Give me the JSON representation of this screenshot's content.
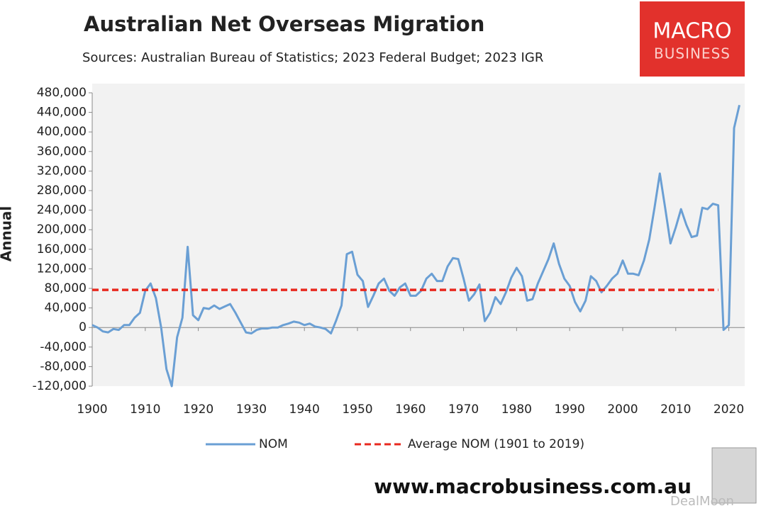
{
  "chart_data": {
    "type": "line",
    "title": "Australian Net Overseas Migration",
    "subtitle": "Sources: Australian Bureau of Statistics; 2023 Federal Budget; 2023 IGR",
    "y_label": "Annual",
    "logo": [
      "MACRO",
      "BUSINESS"
    ],
    "website": "www.macrobusiness.com.au",
    "watermark": "DealMoon",
    "x": [
      1900,
      1901,
      1902,
      1903,
      1904,
      1905,
      1906,
      1907,
      1908,
      1909,
      1910,
      1911,
      1912,
      1913,
      1914,
      1915,
      1916,
      1917,
      1918,
      1919,
      1920,
      1921,
      1922,
      1923,
      1924,
      1925,
      1926,
      1927,
      1928,
      1929,
      1930,
      1931,
      1932,
      1933,
      1934,
      1935,
      1936,
      1937,
      1938,
      1939,
      1940,
      1941,
      1942,
      1943,
      1944,
      1945,
      1946,
      1947,
      1948,
      1949,
      1950,
      1951,
      1952,
      1953,
      1954,
      1955,
      1956,
      1957,
      1958,
      1959,
      1960,
      1961,
      1962,
      1963,
      1964,
      1965,
      1966,
      1967,
      1968,
      1969,
      1970,
      1971,
      1972,
      1973,
      1974,
      1975,
      1976,
      1977,
      1978,
      1979,
      1980,
      1981,
      1982,
      1983,
      1984,
      1985,
      1986,
      1987,
      1988,
      1989,
      1990,
      1991,
      1992,
      1993,
      1994,
      1995,
      1996,
      1997,
      1998,
      1999,
      2000,
      2001,
      2002,
      2003,
      2004,
      2005,
      2006,
      2007,
      2008,
      2009,
      2010,
      2011,
      2012,
      2013,
      2014,
      2015,
      2016,
      2017,
      2018,
      2019,
      2020,
      2021,
      2022
    ],
    "series": [
      {
        "name": "NOM",
        "color": "#6a9fd4",
        "dashed": false,
        "values": [
          5000,
          0,
          -8000,
          -10000,
          -3000,
          -5000,
          5000,
          5000,
          20000,
          30000,
          75000,
          90000,
          60000,
          0,
          -85000,
          -120000,
          -20000,
          20000,
          165000,
          25000,
          15000,
          40000,
          38000,
          45000,
          38000,
          43000,
          48000,
          30000,
          10000,
          -10000,
          -12000,
          -5000,
          -2000,
          -2000,
          0,
          0,
          5000,
          8000,
          12000,
          10000,
          5000,
          8000,
          2000,
          0,
          -3000,
          -12000,
          15000,
          45000,
          150000,
          155000,
          108000,
          95000,
          42000,
          65000,
          90000,
          100000,
          75000,
          65000,
          82000,
          90000,
          65000,
          65000,
          75000,
          100000,
          110000,
          95000,
          95000,
          125000,
          142000,
          140000,
          100000,
          55000,
          68000,
          88000,
          13000,
          30000,
          62000,
          48000,
          72000,
          102000,
          122000,
          105000,
          55000,
          58000,
          90000,
          115000,
          140000,
          172000,
          130000,
          100000,
          85000,
          52000,
          33000,
          55000,
          105000,
          95000,
          72000,
          85000,
          100000,
          110000,
          137000,
          110000,
          110000,
          107000,
          137000,
          180000,
          245000,
          315000,
          245000,
          172000,
          205000,
          242000,
          210000,
          185000,
          188000,
          245000,
          242000,
          253000,
          250000,
          -5000,
          5000,
          408000,
          455000
        ]
      },
      {
        "name": "Average NOM (1901 to 2019)",
        "color": "#e8281e",
        "dashed": true,
        "x": [
          1900,
          2018
        ],
        "values": [
          77000,
          77000
        ]
      }
    ],
    "xlim": [
      1900,
      2023
    ],
    "xticks": [
      1900,
      1910,
      1920,
      1930,
      1940,
      1950,
      1960,
      1970,
      1980,
      1990,
      2000,
      2010,
      2020
    ],
    "ylim": [
      -120000,
      480000
    ],
    "yticks": [
      {
        "value": -120000,
        "label": "-120,000"
      },
      {
        "value": -80000,
        "label": "-80,000"
      },
      {
        "value": -40000,
        "label": "-40,000"
      },
      0,
      {
        "value": 40000,
        "label": "40,000"
      },
      {
        "value": 80000,
        "label": "80,000"
      },
      {
        "value": 120000,
        "label": "120,000"
      },
      {
        "value": 160000,
        "label": "160,000"
      },
      {
        "value": 200000,
        "label": "200,000"
      },
      {
        "value": 240000,
        "label": "240,000"
      },
      {
        "value": 280000,
        "label": "280,000"
      },
      {
        "value": 320000,
        "label": "320,000"
      },
      {
        "value": 360000,
        "label": "360,000"
      },
      {
        "value": 400000,
        "label": "400,000"
      },
      {
        "value": 440000,
        "label": "440,000"
      },
      {
        "value": 480000,
        "label": "480,000"
      }
    ],
    "grid": false,
    "legend": "bottom"
  }
}
